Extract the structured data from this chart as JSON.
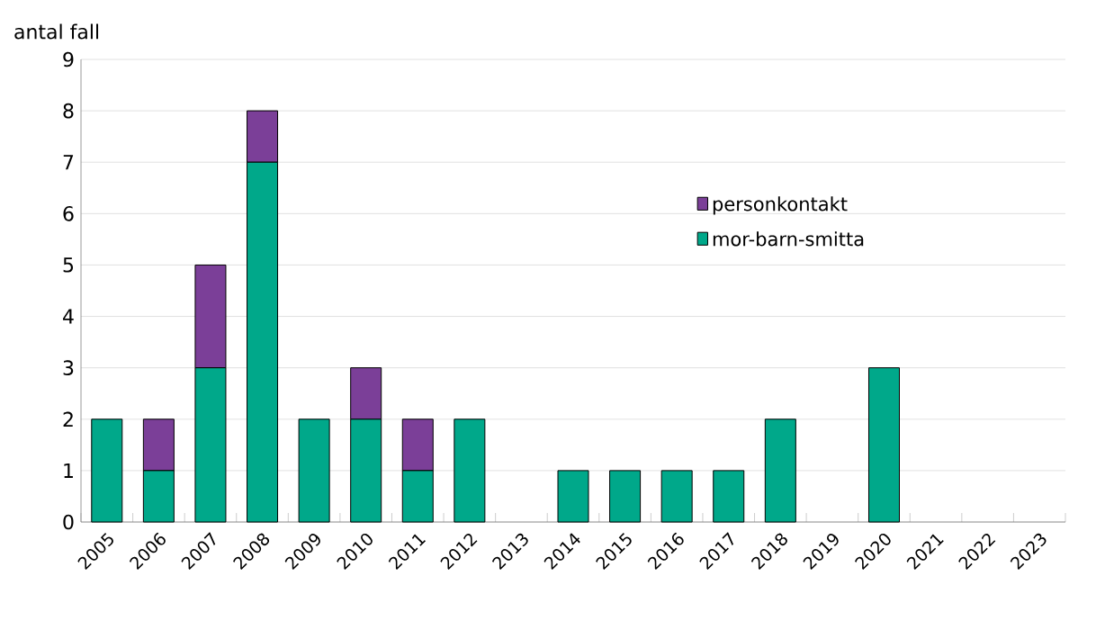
{
  "chart_data": {
    "type": "bar",
    "stacked": true,
    "ylabel": "antal fall",
    "categories": [
      "2005",
      "2006",
      "2007",
      "2008",
      "2009",
      "2010",
      "2011",
      "2012",
      "2013",
      "2014",
      "2015",
      "2016",
      "2017",
      "2018",
      "2019",
      "2020",
      "2021",
      "2022",
      "2023"
    ],
    "series": [
      {
        "name": "mor-barn-smitta",
        "color": "#00a88a",
        "values": [
          2,
          1,
          3,
          7,
          2,
          2,
          1,
          2,
          0,
          1,
          1,
          1,
          1,
          2,
          0,
          3,
          0,
          0,
          0
        ]
      },
      {
        "name": "personkontakt",
        "color": "#7b3f98",
        "values": [
          0,
          1,
          2,
          1,
          0,
          1,
          1,
          0,
          0,
          0,
          0,
          0,
          0,
          0,
          0,
          0,
          0,
          0,
          0
        ]
      }
    ],
    "ylim": [
      0,
      9
    ],
    "yticks": [
      0,
      1,
      2,
      3,
      4,
      5,
      6,
      7,
      8,
      9
    ],
    "grid": "y",
    "legend": "right"
  }
}
